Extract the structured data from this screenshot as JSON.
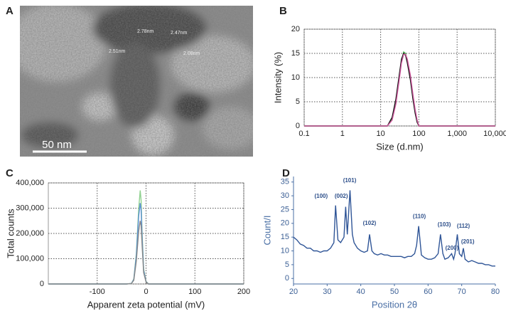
{
  "image_panel": {
    "panel_label": "A",
    "scale_bar": "50 nm",
    "measurements": [
      "2.78nm",
      "2.47nm",
      "2.51nm",
      "2.08nm"
    ]
  },
  "chart_data": [
    {
      "type": "line",
      "panel_label": "B",
      "x_label": "Size (d.nm)",
      "y_label": "Intensity (%)",
      "xscale": "log",
      "grid": true,
      "x": [
        0.1,
        15,
        20,
        25,
        30,
        35,
        40,
        45,
        50,
        60,
        70,
        80,
        90,
        100,
        10000
      ],
      "series": [
        {
          "color": "#4caf50",
          "values": [
            0,
            0,
            1.5,
            5,
            9.5,
            13.5,
            15.3,
            15,
            13.5,
            10,
            6,
            3,
            1,
            0,
            0
          ]
        },
        {
          "color": "#111111",
          "values": [
            0,
            0,
            1.8,
            5.5,
            10,
            13.8,
            15,
            14.6,
            13,
            9.5,
            5.5,
            2.6,
            0.8,
            0,
            0
          ]
        },
        {
          "color": "#d05aa0",
          "values": [
            0,
            0,
            1.2,
            4.5,
            9,
            13,
            14.8,
            14.8,
            13.8,
            10.5,
            6.5,
            3.4,
            1.3,
            0,
            0
          ]
        }
      ],
      "xlim": [
        0.1,
        10000
      ],
      "xticks": [
        0.1,
        1,
        10,
        100,
        {
          "value": 1000,
          "label": "1,000"
        },
        {
          "value": 10000,
          "label": "10,000"
        }
      ],
      "ylim": [
        0,
        20
      ],
      "yticks": [
        0,
        5,
        10,
        15,
        20
      ]
    },
    {
      "type": "line",
      "panel_label": "C",
      "x_label": "Apparent zeta potential (mV)",
      "y_label": "Total counts",
      "grid": true,
      "x": [
        -200,
        -40,
        -30,
        -25,
        -20,
        -15,
        -12,
        -10,
        -8,
        -5,
        0,
        5,
        10,
        200
      ],
      "series": [
        {
          "color": "#8fd18f",
          "values": [
            0,
            0,
            2000,
            20000,
            120000,
            300000,
            370000,
            330000,
            200000,
            60000,
            10000,
            0,
            0,
            0
          ]
        },
        {
          "color": "#5b8fd6",
          "values": [
            0,
            0,
            2000,
            18000,
            110000,
            270000,
            320000,
            290000,
            180000,
            55000,
            9000,
            0,
            0,
            0
          ]
        },
        {
          "color": "#888888",
          "values": [
            0,
            0,
            1500,
            15000,
            90000,
            210000,
            250000,
            230000,
            150000,
            45000,
            8000,
            0,
            0,
            0
          ]
        }
      ],
      "xlim": [
        -200,
        200
      ],
      "xticks": [
        -100,
        0,
        100,
        200
      ],
      "ylim": [
        0,
        400000
      ],
      "yticks": [
        0,
        {
          "value": 100000,
          "label": "100,000"
        },
        {
          "value": 200000,
          "label": "200,000"
        },
        {
          "value": 300000,
          "label": "300,000"
        },
        {
          "value": 400000,
          "label": "400,000"
        }
      ]
    },
    {
      "type": "line",
      "panel_label": "D",
      "x_label": "Position 2θ",
      "y_label": "Count/I",
      "grid": false,
      "x": [
        20,
        21,
        22,
        23,
        24,
        25,
        26,
        27,
        28,
        29,
        30,
        31,
        32,
        32.5,
        33.2,
        34,
        35,
        35.5,
        36,
        36.8,
        37.5,
        38,
        39,
        40,
        41,
        42,
        42.6,
        43.3,
        44,
        45,
        46,
        47,
        48,
        49,
        50,
        51,
        52,
        53,
        54,
        55,
        56,
        56.6,
        57.2,
        57.9,
        58,
        59,
        60,
        61,
        62,
        63,
        63.7,
        64.4,
        65,
        66,
        67,
        67.6,
        68,
        68.7,
        69.3,
        70,
        70.5,
        71,
        72,
        73,
        74,
        75,
        76,
        77,
        78,
        79,
        80
      ],
      "series": [
        {
          "color": "#2f5597",
          "values": [
            15,
            14,
            12.5,
            12,
            11,
            11,
            10,
            10,
            9.5,
            10,
            10,
            11,
            13,
            26.5,
            14,
            13,
            15,
            26,
            16,
            32,
            16,
            13,
            11,
            10,
            9.5,
            10,
            16,
            10,
            9,
            8.5,
            9,
            8.5,
            8.5,
            8,
            8,
            8,
            8,
            7.5,
            8,
            8,
            9,
            12,
            19,
            10,
            8.5,
            7.5,
            7,
            7,
            7.5,
            9,
            16,
            9,
            7,
            7.5,
            9,
            7,
            9,
            16,
            9,
            8,
            11,
            7,
            6,
            6.5,
            6,
            5.5,
            5.5,
            5,
            5,
            4.5,
            4.5
          ]
        }
      ],
      "xlim": [
        20,
        80
      ],
      "xticks": [
        20,
        30,
        40,
        50,
        60,
        70,
        80
      ],
      "ylim": [
        -2,
        37
      ],
      "yticks": [
        0,
        5,
        10,
        15,
        20,
        25,
        30,
        35
      ],
      "annotations": [
        {
          "text": "(100)",
          "x": 28.2,
          "y": 29.8
        },
        {
          "text": "(002)",
          "x": 34.2,
          "y": 29.8
        },
        {
          "text": "(101)",
          "x": 36.7,
          "y": 35.5
        },
        {
          "text": "(102)",
          "x": 42.6,
          "y": 20
        },
        {
          "text": "(110)",
          "x": 57.4,
          "y": 22.5
        },
        {
          "text": "(103)",
          "x": 64.8,
          "y": 19.5
        },
        {
          "text": "(112)",
          "x": 70.5,
          "y": 19
        },
        {
          "text": "(200)",
          "x": 67.1,
          "y": 10.9
        },
        {
          "text": "(201)",
          "x": 71.8,
          "y": 13.3
        }
      ]
    }
  ]
}
